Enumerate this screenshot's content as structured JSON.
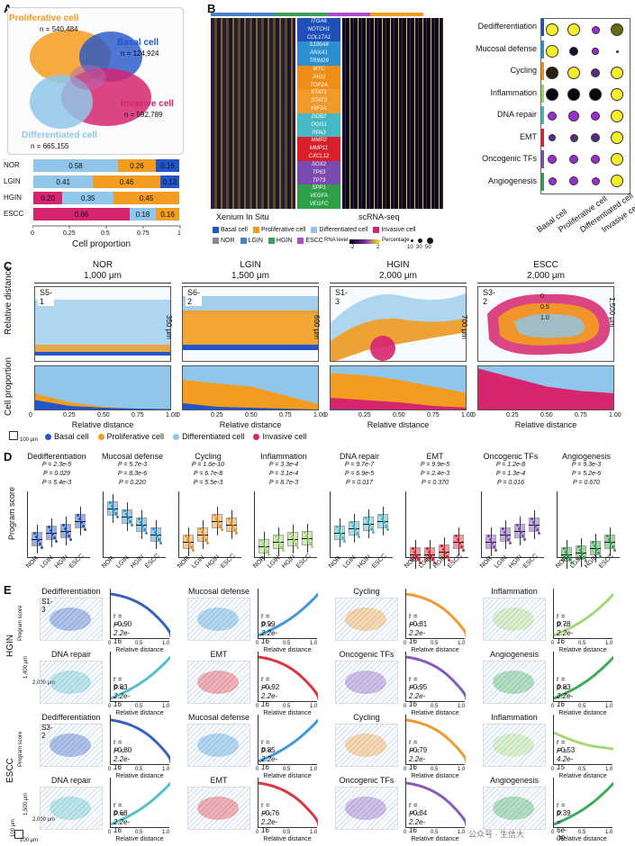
{
  "panel_labels": {
    "a": "A",
    "b": "B",
    "c": "C",
    "d": "D",
    "e": "E"
  },
  "panelA": {
    "clusters": [
      {
        "name": "Proliferative cell",
        "n": "n = 540,484",
        "color": "#f39c1f"
      },
      {
        "name": "Basal cell",
        "n": "n = 124,924",
        "color": "#2255cc"
      },
      {
        "name": "Invasive cell",
        "n": "n = 592,789",
        "color": "#d6246e"
      },
      {
        "name": "Differentiated cell",
        "n": "n = 665,155",
        "color": "#8fc6ea"
      }
    ],
    "bar_rows": [
      {
        "label": "NOR",
        "segments": [
          {
            "v": "",
            "w": 0.0,
            "c": "#d6246e"
          },
          {
            "v": "0.58",
            "w": 0.58,
            "c": "#8fc6ea"
          },
          {
            "v": "0.26",
            "w": 0.26,
            "c": "#f39c1f"
          },
          {
            "v": "0.16",
            "w": 0.16,
            "c": "#2255cc"
          }
        ]
      },
      {
        "label": "LGIN",
        "segments": [
          {
            "v": "",
            "w": 0.0,
            "c": "#d6246e"
          },
          {
            "v": "0.41",
            "w": 0.41,
            "c": "#8fc6ea"
          },
          {
            "v": "0.46",
            "w": 0.46,
            "c": "#f39c1f"
          },
          {
            "v": "0.13",
            "w": 0.13,
            "c": "#2255cc"
          }
        ]
      },
      {
        "label": "HGIN",
        "segments": [
          {
            "v": "0.20",
            "w": 0.2,
            "c": "#d6246e"
          },
          {
            "v": "0.35",
            "w": 0.35,
            "c": "#8fc6ea"
          },
          {
            "v": "0.45",
            "w": 0.45,
            "c": "#f39c1f"
          }
        ]
      },
      {
        "label": "ESCC",
        "segments": [
          {
            "v": "0.66",
            "w": 0.66,
            "c": "#d6246e"
          },
          {
            "v": "0.18",
            "w": 0.18,
            "c": "#8fc6ea"
          },
          {
            "v": "0.16",
            "w": 0.16,
            "c": "#f39c1f"
          }
        ]
      }
    ],
    "ticks": [
      "0",
      "0.25",
      "0.5",
      "0.75",
      "1"
    ],
    "xlabel": "Cell proportion"
  },
  "panelB": {
    "genes": [
      "ITGA6",
      "NOTCH1",
      "COL17A1",
      "S100A8",
      "ANXA1",
      "TRIM29",
      "MYC",
      "JAG1",
      "TOP2A",
      "STAT1",
      "STAT3",
      "HIF1A",
      "DDB2",
      "OGG1",
      "RPA3",
      "MMP2",
      "MMP11",
      "CXCL12",
      "SOX2",
      "TP63",
      "TP73",
      "SPP1",
      "VEGFA",
      "VEGFC"
    ],
    "gene_colors": [
      "#1f4fb8",
      "#1f4fb8",
      "#1f4fb8",
      "#2b8fd0",
      "#2b8fd0",
      "#2b8fd0",
      "#ef8f1a",
      "#ef8f1a",
      "#ef8f1a",
      "#f09a2a",
      "#f09a2a",
      "#f09a2a",
      "#45b8c4",
      "#45b8c4",
      "#45b8c4",
      "#d81f2a",
      "#d81f2a",
      "#d81f2a",
      "#7a4ab0",
      "#7a4ab0",
      "#7a4ab0",
      "#2fa04a",
      "#2fa04a",
      "#2fa04a"
    ],
    "left_label": "Xenium In Situ",
    "right_label": "scRNA-seq",
    "programs": [
      "Dedifferentiation",
      "Mucosal defense",
      "Cycling",
      "Inflammation",
      "DNA repair",
      "EMT",
      "Oncogenic TFs",
      "Angiogenesis"
    ],
    "program_colors": [
      "#1f4fb8",
      "#2b8fd0",
      "#ef8f1a",
      "#9bd36a",
      "#45b8c4",
      "#d81f2a",
      "#7a4ab0",
      "#2fa04a"
    ],
    "dotplot_cols": [
      "Basal cell",
      "Proliferative cell",
      "Differentiated cell",
      "Invasive cell"
    ],
    "dot_rows": [
      [
        {
          "s": 0.8,
          "c": "#f5ef2a"
        },
        {
          "s": 0.8,
          "c": "#f5ef2a"
        },
        {
          "s": 0.5,
          "c": "#9a2fd0"
        },
        {
          "s": 0.8,
          "c": "#6a6a10"
        }
      ],
      [
        {
          "s": 0.75,
          "c": "#f5ef2a"
        },
        {
          "s": 0.6,
          "c": "#1a0a22"
        },
        {
          "s": 0.4,
          "c": "#9a2fd0"
        },
        {
          "s": 0.15,
          "c": "#9a2fd0"
        }
      ],
      [
        {
          "s": 0.75,
          "c": "#2a2010"
        },
        {
          "s": 0.8,
          "c": "#f5ef2a"
        },
        {
          "s": 0.55,
          "c": "#5a2a80"
        },
        {
          "s": 0.8,
          "c": "#f5ef2a"
        }
      ],
      [
        {
          "s": 0.8,
          "c": "#0a0510"
        },
        {
          "s": 0.8,
          "c": "#0a0510"
        },
        {
          "s": 0.8,
          "c": "#0a0510"
        },
        {
          "s": 0.8,
          "c": "#f5ef2a"
        }
      ],
      [
        {
          "s": 0.6,
          "c": "#9a2fd0"
        },
        {
          "s": 0.7,
          "c": "#9a2fd0"
        },
        {
          "s": 0.6,
          "c": "#9a2fd0"
        },
        {
          "s": 0.8,
          "c": "#f5ef2a"
        }
      ],
      [
        {
          "s": 0.45,
          "c": "#5a2a80"
        },
        {
          "s": 0.5,
          "c": "#5a2a80"
        },
        {
          "s": 0.55,
          "c": "#5a2a80"
        },
        {
          "s": 0.8,
          "c": "#f5ef2a"
        }
      ],
      [
        {
          "s": 0.55,
          "c": "#9a2fd0"
        },
        {
          "s": 0.6,
          "c": "#9a2fd0"
        },
        {
          "s": 0.55,
          "c": "#9a2fd0"
        },
        {
          "s": 0.8,
          "c": "#f5ef2a"
        }
      ],
      [
        {
          "s": 0.5,
          "c": "#9a2fd0"
        },
        {
          "s": 0.55,
          "c": "#9a2fd0"
        },
        {
          "s": 0.5,
          "c": "#9a2fd0"
        },
        {
          "s": 0.8,
          "c": "#f5ef2a"
        }
      ]
    ],
    "legend_cells": [
      {
        "name": "Basal cell",
        "c": "#2255cc"
      },
      {
        "name": "Proliferative cell",
        "c": "#f39c1f"
      },
      {
        "name": "Differentiated cell",
        "c": "#8fc6ea"
      },
      {
        "name": "Invasive cell",
        "c": "#d6246e"
      }
    ],
    "legend_stages": [
      {
        "name": "NOR",
        "c": "#888888"
      },
      {
        "name": "LGIN",
        "c": "#4a7ed0"
      },
      {
        "name": "HGIN",
        "c": "#3aa05a"
      },
      {
        "name": "ESCC",
        "c": "#b04ad0"
      }
    ],
    "rna_label": "RNA level",
    "rna_ticks": [
      "-2",
      "2"
    ],
    "pct_label": "Percentage",
    "pct_ticks": [
      "10",
      "30",
      "50"
    ]
  },
  "panelC": {
    "samples": [
      {
        "stage": "NOR",
        "width_label": "1,000 μm",
        "id": "S5-1",
        "height_label": "350 μm"
      },
      {
        "stage": "LGIN",
        "width_label": "1,500 μm",
        "id": "S6-2",
        "height_label": "600 μm"
      },
      {
        "stage": "HGIN",
        "width_label": "2,000 μm",
        "id": "S1-3",
        "height_label": "700 μm"
      },
      {
        "stage": "ESCC",
        "width_label": "2,000 μm",
        "id": "S3-2",
        "height_label": "1,500 μm"
      }
    ],
    "area_fracs": [
      {
        "basal": [
          0.25,
          0.12,
          0.08,
          0.06,
          0.05
        ],
        "prolif": [
          0.4,
          0.2,
          0.1,
          0.05,
          0.02
        ],
        "invasive": [
          0,
          0,
          0,
          0,
          0
        ]
      },
      {
        "basal": [
          0.18,
          0.1,
          0.08,
          0.06,
          0.04
        ],
        "prolif": [
          0.7,
          0.62,
          0.55,
          0.35,
          0.15
        ],
        "invasive": [
          0,
          0,
          0,
          0,
          0
        ]
      },
      {
        "basal": [
          0.05,
          0.04,
          0.03,
          0.02,
          0.02
        ],
        "prolif": [
          0.85,
          0.8,
          0.7,
          0.55,
          0.4
        ],
        "invasive": [
          0.3,
          0.25,
          0.2,
          0.12,
          0.08
        ]
      },
      {
        "basal": [
          0.02,
          0.02,
          0.02,
          0.02,
          0.02
        ],
        "prolif": [
          0.35,
          0.3,
          0.25,
          0.2,
          0.15
        ],
        "invasive": [
          0.95,
          0.75,
          0.55,
          0.45,
          0.4
        ]
      }
    ],
    "ylabel_top": "Relative distance",
    "ylabel_bottom": "Cell proportion",
    "ticks": [
      "0",
      "0.25",
      "0.50",
      "0.75",
      "1.00"
    ],
    "xlabel": "Relative distance",
    "scale": "100 μm",
    "legend": [
      {
        "name": "Basal cell",
        "c": "#2255cc"
      },
      {
        "name": "Proliferative cell",
        "c": "#f39c1f"
      },
      {
        "name": "Differentiated cell",
        "c": "#8fc6ea"
      },
      {
        "name": "Invasive cell",
        "c": "#d6246e"
      }
    ],
    "contour_labels": [
      "0",
      "0.5",
      "1.0"
    ]
  },
  "panelD": {
    "ylabel": "Program score",
    "stages": [
      "NOR",
      "LGIN",
      "HGIN",
      "ESCC"
    ],
    "groups": [
      {
        "title": "Dedifferentiation",
        "color": "#1f4fb8",
        "p": [
          "P = 2.3e-5",
          "P = 0.029",
          "P = 5.4e-3"
        ],
        "med": [
          0.28,
          0.38,
          0.4,
          0.55
        ]
      },
      {
        "title": "Mucosal defense",
        "color": "#2b8fd0",
        "p": [
          "P = 5.7e-3",
          "P = 8.3e-6",
          "P = 0.220"
        ],
        "med": [
          0.75,
          0.62,
          0.5,
          0.35
        ]
      },
      {
        "title": "Cycling",
        "color": "#ef8f1a",
        "p": [
          "P = 1.6e-10",
          "P = 6.7e-8",
          "P = 5.5e-3"
        ],
        "med": [
          0.25,
          0.35,
          0.55,
          0.5
        ]
      },
      {
        "title": "Inflammation",
        "color": "#9bd36a",
        "p": [
          "P = 3.3e-4",
          "P = 3.1e-4",
          "P = 8.7e-3"
        ],
        "med": [
          0.18,
          0.25,
          0.28,
          0.3
        ]
      },
      {
        "title": "DNA repair",
        "color": "#45b8c4",
        "p": [
          "P = 9.7e-7",
          "P = 6.9e-5",
          "P = 0.017"
        ],
        "med": [
          0.38,
          0.45,
          0.52,
          0.55
        ]
      },
      {
        "title": "EMT",
        "color": "#d81f2a",
        "p": [
          "P = 9.9e-5",
          "P = 2.4e-3",
          "P = 0.370"
        ],
        "med": [
          0.05,
          0.06,
          0.1,
          0.25
        ]
      },
      {
        "title": "Oncogenic TFs",
        "color": "#7a4ab0",
        "p": [
          "P = 1.2e-8",
          "P = 1.3e-4",
          "P = 0.016"
        ],
        "med": [
          0.25,
          0.35,
          0.4,
          0.5
        ]
      },
      {
        "title": "Angiogenesis",
        "color": "#2fa04a",
        "p": [
          "P = 9.3e-3",
          "P = 5.2e-6",
          "P = 0.670"
        ],
        "med": [
          0.05,
          0.08,
          0.15,
          0.25
        ]
      }
    ]
  },
  "panelE": {
    "row_labels": [
      "HGIN",
      "ESCC"
    ],
    "sample_ids": [
      "S1-3",
      "S3-2"
    ],
    "ylabel": "Program score",
    "xlabel": "Relative distance",
    "scale_h": [
      "1,400 μm",
      "1,500 μm"
    ],
    "scale_w": "2,000 μm",
    "scale_small": "100 μm",
    "hgin": [
      {
        "title": "Dedifferentiation",
        "color": "#1f4fb8",
        "r": "r = −0.90",
        "p": "P < 2.2e-16",
        "trend": "down"
      },
      {
        "title": "Mucosal defense",
        "color": "#2b8fd0",
        "r": "r = 0.99",
        "p": "P < 2.2e-16",
        "trend": "up"
      },
      {
        "title": "Cycling",
        "color": "#ef8f1a",
        "r": "r = −0.81",
        "p": "P < 2.2e-16",
        "trend": "down"
      },
      {
        "title": "Inflammation",
        "color": "#9bd36a",
        "r": "r = 0.78",
        "p": "P < 2.2e-16",
        "trend": "up"
      },
      {
        "title": "DNA repair",
        "color": "#45b8c4",
        "r": "r = 0.83",
        "p": "P < 2.2e-16",
        "trend": "up"
      },
      {
        "title": "EMT",
        "color": "#d81f2a",
        "r": "r = −0.92",
        "p": "P < 2.2e-16",
        "trend": "down"
      },
      {
        "title": "Oncogenic TFs",
        "color": "#7a4ab0",
        "r": "r = −0.95",
        "p": "P < 2.2e-16",
        "trend": "down"
      },
      {
        "title": "Angiogenesis",
        "color": "#2fa04a",
        "r": "r = 0.83",
        "p": "P < 2.2e-16",
        "trend": "up"
      }
    ],
    "escc": [
      {
        "title": "Dedifferentiation",
        "color": "#1f4fb8",
        "r": "r = −0.80",
        "p": "P < 2.2e-16",
        "trend": "down"
      },
      {
        "title": "Mucosal defense",
        "color": "#2b8fd0",
        "r": "r = 0.85",
        "p": "P < 2.2e-16",
        "trend": "up"
      },
      {
        "title": "Cycling",
        "color": "#ef8f1a",
        "r": "r = −0.79",
        "p": "P < 2.2e-16",
        "trend": "down"
      },
      {
        "title": "Inflammation",
        "color": "#9bd36a",
        "r": "r = −0.53",
        "p": "P = 4.2e-15",
        "trend": "flat"
      },
      {
        "title": "DNA repair",
        "color": "#45b8c4",
        "r": "r = 0.68",
        "p": "P < 2.2e-16",
        "trend": "up"
      },
      {
        "title": "EMT",
        "color": "#d81f2a",
        "r": "r = −0.76",
        "p": "P < 2.2e-16",
        "trend": "down"
      },
      {
        "title": "Oncogenic TFs",
        "color": "#7a4ab0",
        "r": "r = −0.84",
        "p": "P < 2.2e-16",
        "trend": "down"
      },
      {
        "title": "Angiogenesis",
        "color": "#2fa04a",
        "r": "r = 0.39",
        "p": "P = 6e-09",
        "trend": "up"
      }
    ],
    "ticks": [
      "0",
      "0.5",
      "1.0"
    ],
    "watermark": "公众号 · 生信大"
  }
}
